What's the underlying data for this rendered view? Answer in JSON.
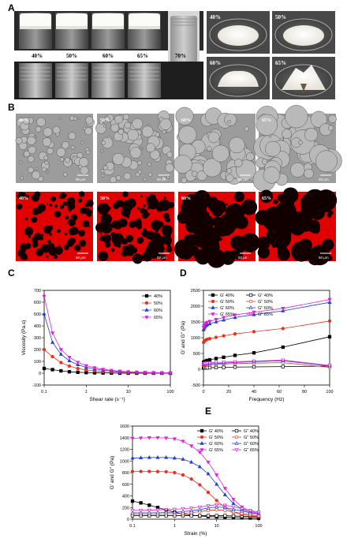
{
  "panel_labels": {
    "a": "A",
    "b": "B",
    "c": "C",
    "d": "D",
    "e": "E"
  },
  "panel_a": {
    "vial_labels": [
      "40%",
      "50%",
      "60%",
      "65%",
      "70%"
    ],
    "dish_labels": [
      "40%",
      "50%",
      "60%",
      "65%"
    ]
  },
  "panel_b": {
    "bright_labels": [
      "40%",
      "50%",
      "60%",
      "65%"
    ],
    "fluor_labels": [
      "40%",
      "50%",
      "60%",
      "65%"
    ],
    "scale_bars": [
      "50 μm",
      "50 μm",
      "50 μm",
      "50 μm"
    ]
  },
  "chart_data": [
    {
      "id": "C",
      "type": "line",
      "xlabel": "Shear rate (s⁻¹)",
      "ylabel": "Viscosity (Pa.s)",
      "xscale": "log",
      "xlim": [
        0.1,
        100
      ],
      "ylim": [
        -100,
        700
      ],
      "xticks": [
        "0.1",
        "1",
        "10",
        "100"
      ],
      "yticks": [
        "-100",
        "0",
        "100",
        "200",
        "300",
        "400",
        "500",
        "600",
        "700"
      ],
      "legend_position": "top-right",
      "x": [
        0.1,
        0.158,
        0.251,
        0.398,
        0.631,
        1,
        1.585,
        2.512,
        3.981,
        6.31,
        10,
        15.85,
        25.12,
        39.81,
        63.1,
        100
      ],
      "series": [
        {
          "name": "40%",
          "color": "#000000",
          "marker": "square",
          "values": [
            40,
            30,
            20,
            12,
            8,
            5,
            3,
            2,
            1,
            0,
            0,
            0,
            0,
            0,
            0,
            0
          ]
        },
        {
          "name": "50%",
          "color": "#e8321e",
          "marker": "circle",
          "values": [
            200,
            140,
            90,
            60,
            40,
            28,
            20,
            14,
            10,
            7,
            5,
            4,
            3,
            2,
            1,
            0
          ]
        },
        {
          "name": "60%",
          "color": "#1f3fd6",
          "marker": "triangle-up",
          "values": [
            500,
            260,
            160,
            105,
            72,
            50,
            36,
            26,
            19,
            14,
            10,
            7,
            5,
            4,
            3,
            2
          ]
        },
        {
          "name": "65%",
          "color": "#e020d8",
          "marker": "triangle-down",
          "values": [
            650,
            340,
            200,
            135,
            92,
            64,
            46,
            33,
            24,
            17,
            12,
            9,
            7,
            5,
            4,
            3
          ]
        }
      ]
    },
    {
      "id": "D",
      "type": "line",
      "xlabel": "Frequency (Hz)",
      "ylabel": "G' and G'' (Pa)",
      "xlim": [
        0,
        100
      ],
      "ylim": [
        -500,
        2500
      ],
      "xticks": [
        "0",
        "20",
        "40",
        "60",
        "80",
        "100"
      ],
      "yticks": [
        "-500",
        "0",
        "500",
        "1000",
        "1500",
        "2000",
        "2500"
      ],
      "legend_position": "top-left",
      "x": [
        0.1,
        0.5,
        1,
        2,
        3,
        5,
        10,
        16,
        25,
        40,
        63,
        100
      ],
      "series": [
        {
          "name": "G' 40%",
          "color": "#000000",
          "marker": "square",
          "filled": true,
          "values": [
            220,
            230,
            240,
            260,
            280,
            300,
            340,
            380,
            440,
            520,
            700,
            1030
          ]
        },
        {
          "name": "G'' 40%",
          "color": "#000000",
          "marker": "square",
          "filled": false,
          "values": [
            40,
            42,
            44,
            46,
            48,
            50,
            55,
            60,
            68,
            75,
            85,
            100
          ]
        },
        {
          "name": "G' 50%",
          "color": "#e8321e",
          "marker": "circle",
          "filled": true,
          "values": [
            850,
            880,
            900,
            930,
            950,
            970,
            1010,
            1060,
            1120,
            1190,
            1290,
            1530
          ]
        },
        {
          "name": "G'' 50%",
          "color": "#e8321e",
          "marker": "circle",
          "filled": false,
          "values": [
            120,
            125,
            130,
            135,
            140,
            145,
            155,
            165,
            180,
            195,
            210,
            60
          ]
        },
        {
          "name": "G' 60%",
          "color": "#1f3fd6",
          "marker": "triangle-up",
          "filled": true,
          "values": [
            1250,
            1300,
            1340,
            1380,
            1410,
            1440,
            1500,
            1560,
            1640,
            1730,
            1850,
            2120
          ]
        },
        {
          "name": "G'' 60%",
          "color": "#1f3fd6",
          "marker": "triangle-up",
          "filled": false,
          "values": [
            150,
            155,
            160,
            165,
            170,
            175,
            185,
            195,
            215,
            240,
            270,
            100
          ]
        },
        {
          "name": "G' 65%",
          "color": "#e020d8",
          "marker": "triangle-down",
          "filled": true,
          "values": [
            1330,
            1380,
            1420,
            1460,
            1490,
            1520,
            1580,
            1640,
            1720,
            1810,
            1930,
            2210
          ]
        },
        {
          "name": "G'' 65%",
          "color": "#e020d8",
          "marker": "triangle-down",
          "filled": false,
          "values": [
            180,
            185,
            190,
            195,
            200,
            205,
            215,
            225,
            240,
            260,
            290,
            120
          ]
        }
      ]
    },
    {
      "id": "E",
      "type": "line",
      "xlabel": "Strain (%)",
      "ylabel": "G' and G'' (Pa)",
      "xscale": "log",
      "xlim": [
        0.1,
        100
      ],
      "ylim": [
        0,
        1600
      ],
      "xticks": [
        "0.1",
        "1",
        "10",
        "100"
      ],
      "yticks": [
        "0",
        "200",
        "400",
        "600",
        "800",
        "1000",
        "1200",
        "1400",
        "1600"
      ],
      "legend_position": "top-right",
      "x": [
        0.1,
        0.158,
        0.251,
        0.398,
        0.631,
        1,
        1.585,
        2.512,
        3.981,
        6.31,
        10,
        15.85,
        25.12,
        39.81,
        63.1,
        100
      ],
      "series": [
        {
          "name": "G' 40%",
          "color": "#000000",
          "marker": "square",
          "filled": true,
          "values": [
            310,
            280,
            240,
            200,
            160,
            120,
            90,
            70,
            55,
            45,
            40,
            35,
            30,
            25,
            20,
            15
          ]
        },
        {
          "name": "G'' 40%",
          "color": "#000000",
          "marker": "square",
          "filled": false,
          "values": [
            60,
            60,
            60,
            60,
            60,
            60,
            60,
            60,
            60,
            60,
            60,
            60,
            55,
            50,
            45,
            40
          ]
        },
        {
          "name": "G' 50%",
          "color": "#e8321e",
          "marker": "circle",
          "filled": true,
          "values": [
            820,
            820,
            820,
            818,
            815,
            800,
            760,
            690,
            590,
            460,
            320,
            200,
            120,
            80,
            60,
            45
          ]
        },
        {
          "name": "G'' 50%",
          "color": "#e8321e",
          "marker": "circle",
          "filled": false,
          "values": [
            90,
            90,
            90,
            90,
            92,
            95,
            100,
            110,
            130,
            150,
            160,
            150,
            125,
            100,
            80,
            60
          ]
        },
        {
          "name": "G' 60%",
          "color": "#1f3fd6",
          "marker": "triangle-up",
          "filled": true,
          "values": [
            1050,
            1055,
            1060,
            1060,
            1060,
            1050,
            1030,
            980,
            900,
            780,
            600,
            420,
            270,
            170,
            120,
            90
          ]
        },
        {
          "name": "G'' 60%",
          "color": "#1f3fd6",
          "marker": "triangle-up",
          "filled": false,
          "values": [
            110,
            110,
            110,
            112,
            115,
            120,
            130,
            145,
            165,
            190,
            210,
            200,
            170,
            140,
            110,
            90
          ]
        },
        {
          "name": "G' 65%",
          "color": "#e020d8",
          "marker": "triangle-down",
          "filled": true,
          "values": [
            1390,
            1395,
            1400,
            1400,
            1395,
            1380,
            1340,
            1260,
            1150,
            980,
            760,
            530,
            340,
            210,
            140,
            100
          ]
        },
        {
          "name": "G'' 65%",
          "color": "#e020d8",
          "marker": "triangle-down",
          "filled": false,
          "values": [
            150,
            150,
            155,
            160,
            165,
            170,
            180,
            190,
            210,
            230,
            250,
            240,
            210,
            180,
            150,
            120
          ]
        }
      ]
    }
  ]
}
